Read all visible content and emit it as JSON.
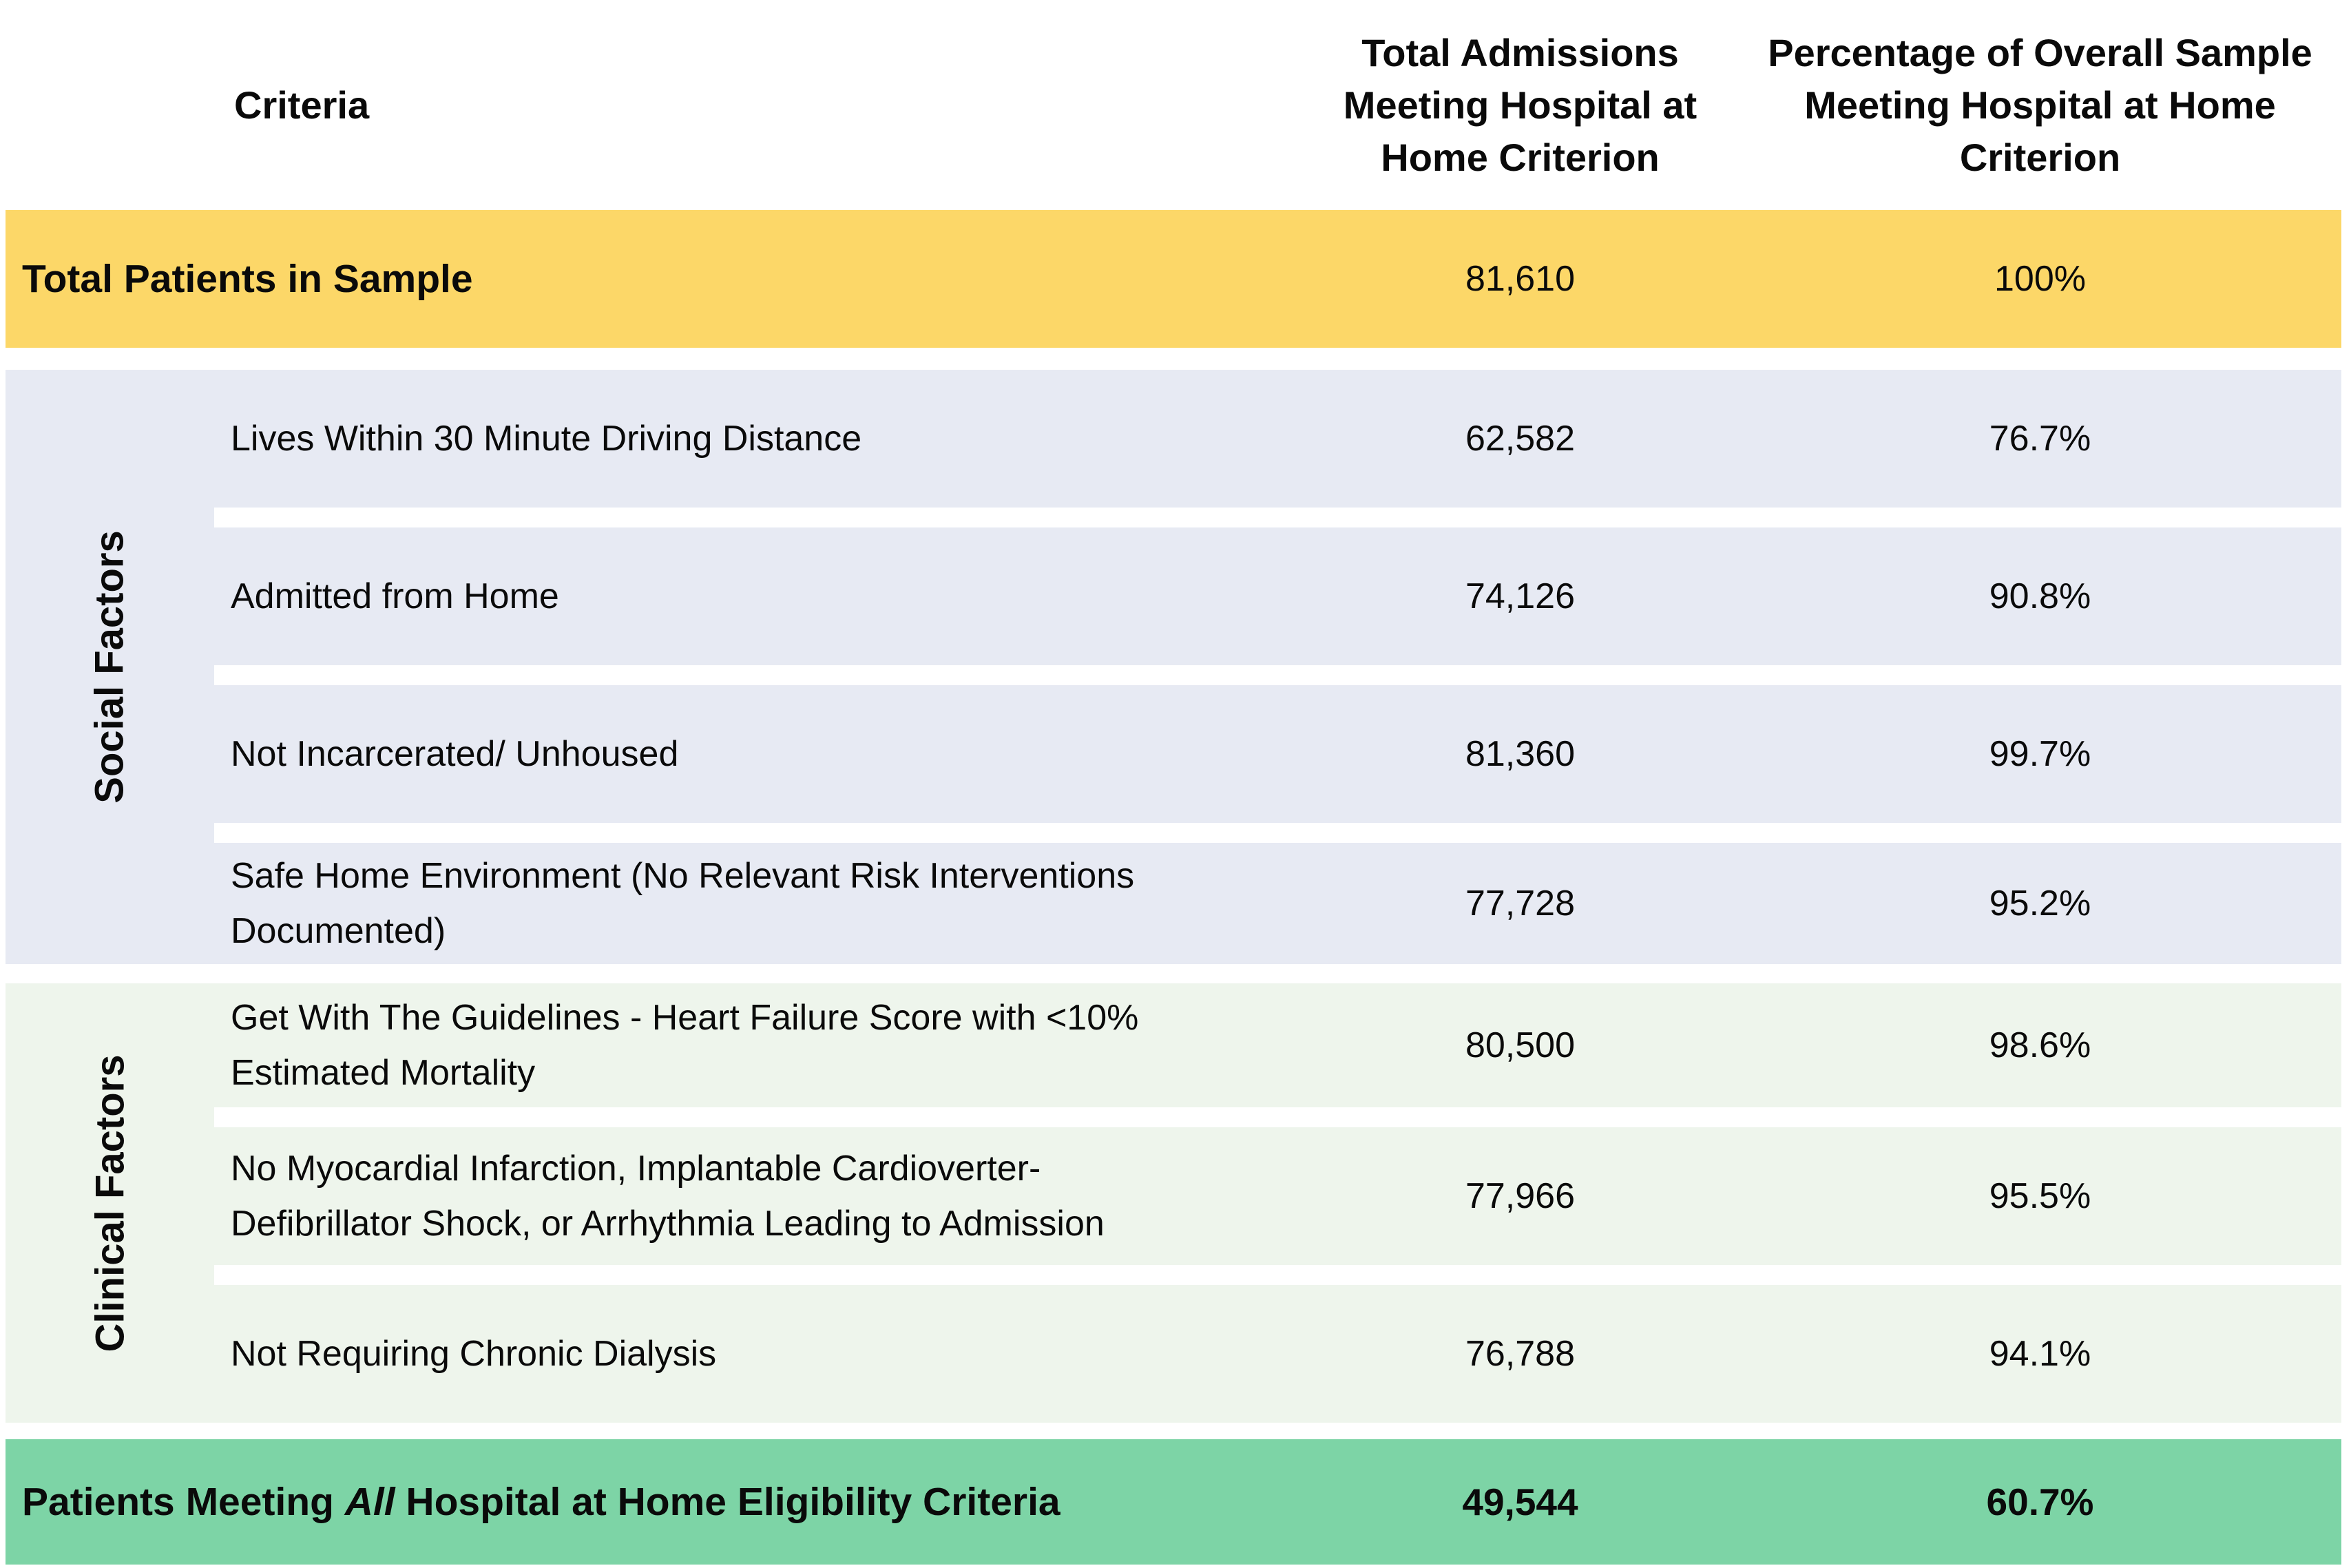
{
  "header": {
    "criteria": "Criteria",
    "admissions": "Total Admissions\nMeeting Hospital at\nHome Criterion",
    "percentage": "Percentage of Overall Sample\nMeeting Hospital at Home\nCriterion"
  },
  "total_row": {
    "label": "Total Patients in Sample",
    "admissions": "81,610",
    "percentage": "100%"
  },
  "sections": [
    {
      "label": "Social Factors",
      "rows": [
        {
          "criterion": "Lives Within 30 Minute Driving Distance",
          "admissions": "62,582",
          "percentage": "76.7%"
        },
        {
          "criterion": "Admitted from Home",
          "admissions": "74,126",
          "percentage": "90.8%"
        },
        {
          "criterion": "Not Incarcerated/ Unhoused",
          "admissions": "81,360",
          "percentage": "99.7%"
        },
        {
          "criterion": "Safe Home Environment (No Relevant Risk Interventions\nDocumented)",
          "admissions": "77,728",
          "percentage": "95.2%"
        }
      ]
    },
    {
      "label": "Clinical Factors",
      "rows": [
        {
          "criterion": "Get With The Guidelines - Heart Failure Score with <10%\nEstimated Mortality",
          "admissions": "80,500",
          "percentage": "98.6%"
        },
        {
          "criterion": "No Myocardial Infarction, Implantable Cardioverter-\nDefibrillator Shock, or Arrhythmia Leading to Admission",
          "admissions": "77,966",
          "percentage": "95.5%"
        },
        {
          "criterion": "Not Requiring Chronic Dialysis",
          "admissions": "76,788",
          "percentage": "94.1%"
        }
      ]
    }
  ],
  "final_row": {
    "label_prefix": "Patients Meeting ",
    "label_italic": "All",
    "label_suffix": " Hospital at Home Eligibility Criteria",
    "admissions": "49,544",
    "percentage": "60.7%"
  },
  "colors": {
    "highlight_yellow": "#FCD768",
    "social_section_bg": "#E7EAF3",
    "clinical_section_bg": "#EEF5EC",
    "final_green": "#7DD4A6",
    "text": "#0a0a0a"
  }
}
